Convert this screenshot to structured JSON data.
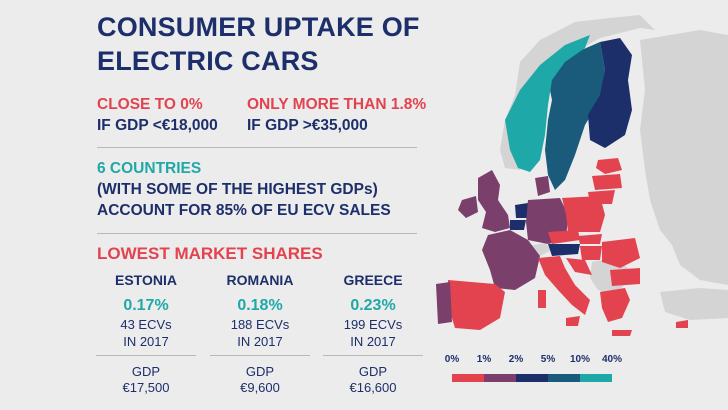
{
  "title": {
    "line1": "CONSUMER UPTAKE OF",
    "line2": "ELECTRIC CARS"
  },
  "gdp_facts": [
    {
      "highlight": "CLOSE TO 0%",
      "detail": "IF GDP <€18,000"
    },
    {
      "highlight": "ONLY MORE THAN 1.8%",
      "detail": "IF GDP >€35,000"
    }
  ],
  "six_countries": {
    "highlight": "6 COUNTRIES",
    "line2": "(WITH SOME OF THE HIGHEST GDPs)",
    "line3": "ACCOUNT FOR 85% OF EU ECV SALES"
  },
  "lowest_heading": "LOWEST MARKET SHARES",
  "countries": [
    {
      "name": "ESTONIA",
      "share": "0.17%",
      "ecvs": "43 ECVs",
      "year": "IN 2017",
      "gdp_label": "GDP",
      "gdp": "€17,500"
    },
    {
      "name": "ROMANIA",
      "share": "0.18%",
      "ecvs": "188 ECVs",
      "year": "IN 2017",
      "gdp_label": "GDP",
      "gdp": "€9,600"
    },
    {
      "name": "GREECE",
      "share": "0.23%",
      "ecvs": "199 ECVs",
      "year": "IN 2017",
      "gdp_label": "GDP",
      "gdp": "€16,600"
    }
  ],
  "legend": {
    "labels": [
      "0%",
      "1%",
      "2%",
      "5%",
      "10%",
      "40%"
    ],
    "colors": [
      "#e2434f",
      "#7a3f6a",
      "#1d2f6b",
      "#1a5a7a",
      "#1fa8a8"
    ]
  },
  "map_colors": {
    "non_eu": "#d4d4d4",
    "sea_outline": "#c8c8c8",
    "lowest": "#e2434f",
    "low": "#7a3f6a",
    "mid": "#1d2f6b",
    "high": "#1a5a7a",
    "highest": "#1fa8a8"
  }
}
